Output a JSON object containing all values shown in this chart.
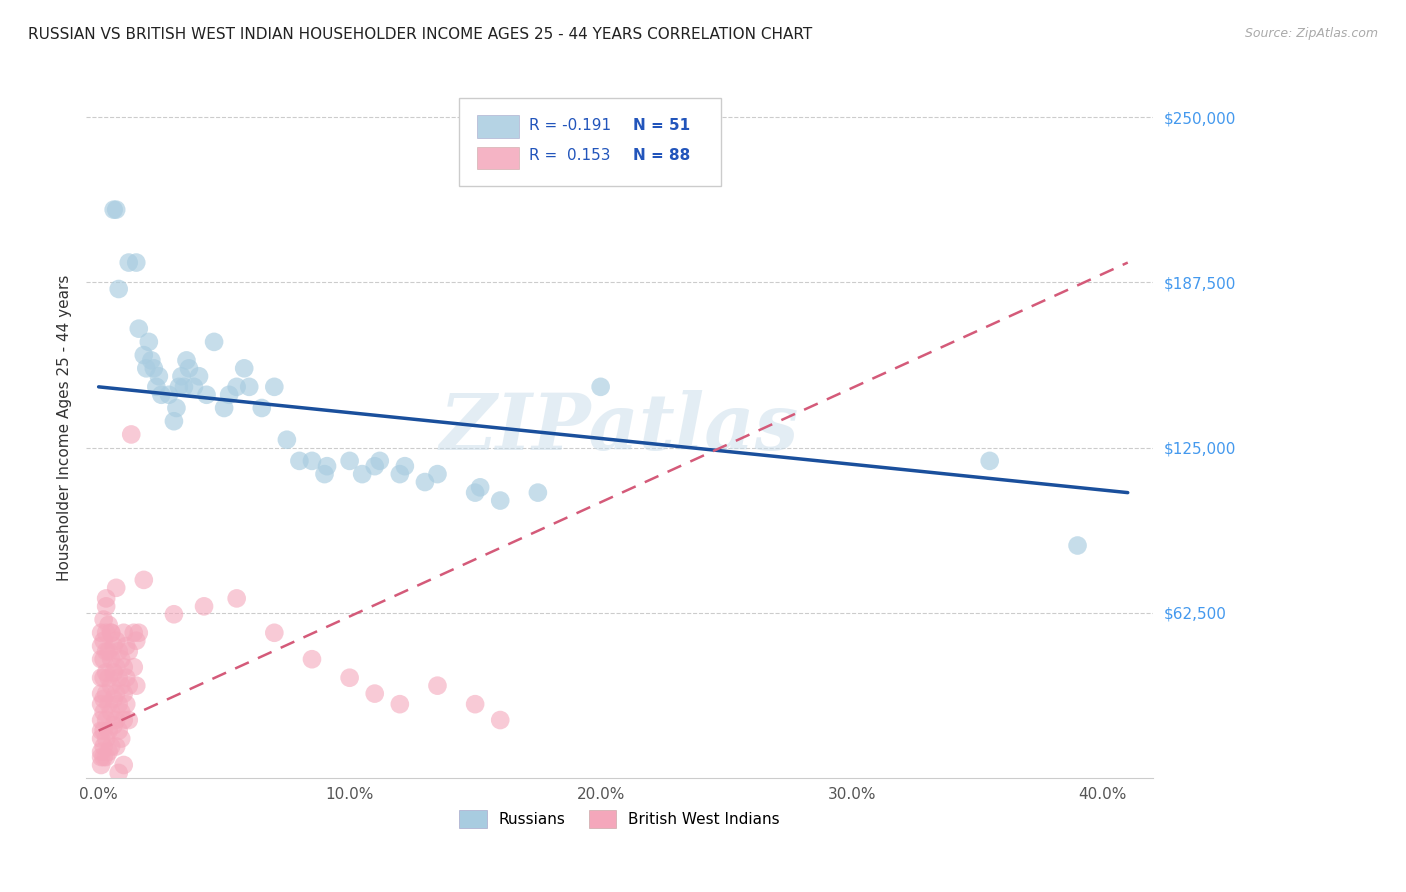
{
  "title": "RUSSIAN VS BRITISH WEST INDIAN HOUSEHOLDER INCOME AGES 25 - 44 YEARS CORRELATION CHART",
  "source": "Source: ZipAtlas.com",
  "xlabel_ticks": [
    "0.0%",
    "10.0%",
    "20.0%",
    "30.0%",
    "40.0%"
  ],
  "xlabel_tick_vals": [
    0.0,
    0.1,
    0.2,
    0.3,
    0.4
  ],
  "ylabel": "Householder Income Ages 25 - 44 years",
  "ylabel_ticks": [
    "$62,500",
    "$125,000",
    "$187,500",
    "$250,000"
  ],
  "ylabel_tick_vals": [
    62500,
    125000,
    187500,
    250000
  ],
  "xlim": [
    -0.005,
    0.42
  ],
  "ylim": [
    0,
    265000
  ],
  "watermark": "ZIPatlas",
  "legend_r_russian": "-0.191",
  "legend_n_russian": "51",
  "legend_r_bwi": "0.153",
  "legend_n_bwi": "88",
  "russian_color": "#a8cce0",
  "bwi_color": "#f4a7bb",
  "russian_line_color": "#1a4f9c",
  "bwi_line_color": "#d45a79",
  "russian_trend": [
    0.0,
    148000,
    0.41,
    108000
  ],
  "bwi_trend": [
    0.0,
    18000,
    0.41,
    195000
  ],
  "russian_points": [
    [
      0.006,
      215000
    ],
    [
      0.007,
      215000
    ],
    [
      0.008,
      185000
    ],
    [
      0.012,
      195000
    ],
    [
      0.015,
      195000
    ],
    [
      0.016,
      170000
    ],
    [
      0.018,
      160000
    ],
    [
      0.019,
      155000
    ],
    [
      0.02,
      165000
    ],
    [
      0.021,
      158000
    ],
    [
      0.022,
      155000
    ],
    [
      0.023,
      148000
    ],
    [
      0.024,
      152000
    ],
    [
      0.025,
      145000
    ],
    [
      0.028,
      145000
    ],
    [
      0.03,
      135000
    ],
    [
      0.031,
      140000
    ],
    [
      0.032,
      148000
    ],
    [
      0.033,
      152000
    ],
    [
      0.034,
      148000
    ],
    [
      0.035,
      158000
    ],
    [
      0.036,
      155000
    ],
    [
      0.038,
      148000
    ],
    [
      0.04,
      152000
    ],
    [
      0.043,
      145000
    ],
    [
      0.046,
      165000
    ],
    [
      0.05,
      140000
    ],
    [
      0.052,
      145000
    ],
    [
      0.055,
      148000
    ],
    [
      0.058,
      155000
    ],
    [
      0.06,
      148000
    ],
    [
      0.065,
      140000
    ],
    [
      0.07,
      148000
    ],
    [
      0.075,
      128000
    ],
    [
      0.08,
      120000
    ],
    [
      0.085,
      120000
    ],
    [
      0.09,
      115000
    ],
    [
      0.091,
      118000
    ],
    [
      0.1,
      120000
    ],
    [
      0.105,
      115000
    ],
    [
      0.11,
      118000
    ],
    [
      0.112,
      120000
    ],
    [
      0.12,
      115000
    ],
    [
      0.122,
      118000
    ],
    [
      0.13,
      112000
    ],
    [
      0.135,
      115000
    ],
    [
      0.15,
      108000
    ],
    [
      0.152,
      110000
    ],
    [
      0.16,
      105000
    ],
    [
      0.175,
      108000
    ],
    [
      0.2,
      148000
    ],
    [
      0.355,
      120000
    ],
    [
      0.39,
      88000
    ]
  ],
  "bwi_points": [
    [
      0.001,
      55000
    ],
    [
      0.001,
      50000
    ],
    [
      0.001,
      45000
    ],
    [
      0.001,
      38000
    ],
    [
      0.001,
      32000
    ],
    [
      0.001,
      28000
    ],
    [
      0.001,
      22000
    ],
    [
      0.001,
      18000
    ],
    [
      0.001,
      15000
    ],
    [
      0.001,
      10000
    ],
    [
      0.001,
      8000
    ],
    [
      0.001,
      5000
    ],
    [
      0.002,
      60000
    ],
    [
      0.002,
      52000
    ],
    [
      0.002,
      45000
    ],
    [
      0.002,
      38000
    ],
    [
      0.002,
      30000
    ],
    [
      0.002,
      25000
    ],
    [
      0.002,
      18000
    ],
    [
      0.002,
      12000
    ],
    [
      0.002,
      8000
    ],
    [
      0.003,
      65000
    ],
    [
      0.003,
      55000
    ],
    [
      0.003,
      48000
    ],
    [
      0.003,
      40000
    ],
    [
      0.003,
      32000
    ],
    [
      0.003,
      22000
    ],
    [
      0.003,
      15000
    ],
    [
      0.003,
      8000
    ],
    [
      0.004,
      58000
    ],
    [
      0.004,
      48000
    ],
    [
      0.004,
      38000
    ],
    [
      0.004,
      28000
    ],
    [
      0.004,
      18000
    ],
    [
      0.004,
      10000
    ],
    [
      0.005,
      55000
    ],
    [
      0.005,
      45000
    ],
    [
      0.005,
      35000
    ],
    [
      0.005,
      25000
    ],
    [
      0.005,
      12000
    ],
    [
      0.006,
      50000
    ],
    [
      0.006,
      40000
    ],
    [
      0.006,
      30000
    ],
    [
      0.006,
      20000
    ],
    [
      0.007,
      52000
    ],
    [
      0.007,
      42000
    ],
    [
      0.007,
      32000
    ],
    [
      0.007,
      22000
    ],
    [
      0.007,
      12000
    ],
    [
      0.008,
      48000
    ],
    [
      0.008,
      38000
    ],
    [
      0.008,
      28000
    ],
    [
      0.008,
      18000
    ],
    [
      0.009,
      45000
    ],
    [
      0.009,
      35000
    ],
    [
      0.009,
      25000
    ],
    [
      0.009,
      15000
    ],
    [
      0.01,
      55000
    ],
    [
      0.01,
      42000
    ],
    [
      0.01,
      32000
    ],
    [
      0.01,
      22000
    ],
    [
      0.011,
      50000
    ],
    [
      0.011,
      38000
    ],
    [
      0.011,
      28000
    ],
    [
      0.012,
      48000
    ],
    [
      0.012,
      35000
    ],
    [
      0.012,
      22000
    ],
    [
      0.013,
      130000
    ],
    [
      0.014,
      55000
    ],
    [
      0.014,
      42000
    ],
    [
      0.015,
      52000
    ],
    [
      0.015,
      35000
    ],
    [
      0.016,
      55000
    ],
    [
      0.018,
      75000
    ],
    [
      0.03,
      62000
    ],
    [
      0.042,
      65000
    ],
    [
      0.055,
      68000
    ],
    [
      0.07,
      55000
    ],
    [
      0.085,
      45000
    ],
    [
      0.1,
      38000
    ],
    [
      0.11,
      32000
    ],
    [
      0.12,
      28000
    ],
    [
      0.135,
      35000
    ],
    [
      0.15,
      28000
    ],
    [
      0.16,
      22000
    ],
    [
      0.01,
      5000
    ],
    [
      0.008,
      2000
    ],
    [
      0.005,
      55000
    ],
    [
      0.003,
      68000
    ],
    [
      0.007,
      72000
    ]
  ]
}
